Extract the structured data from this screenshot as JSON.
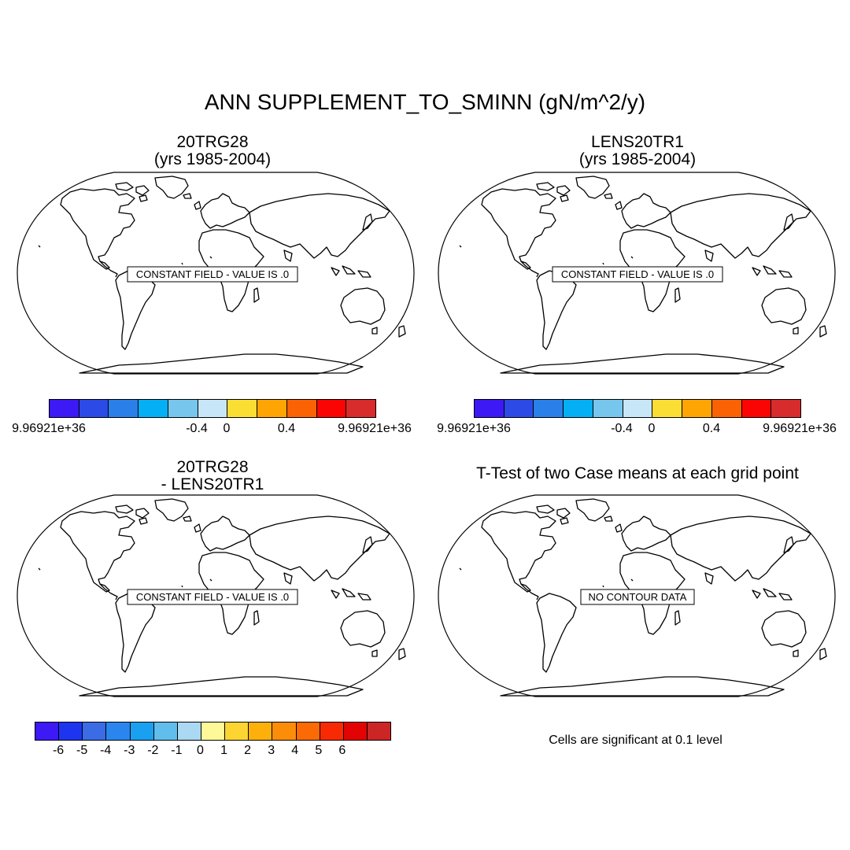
{
  "title": "ANN SUPPLEMENT_TO_SMINN (gN/m^2/y)",
  "panels": [
    {
      "id": "case1",
      "title_line1": "20TRG28",
      "title_line2": "(yrs 1985-2004)",
      "message": "CONSTANT FIELD - VALUE IS .0"
    },
    {
      "id": "case2",
      "title_line1": "LENS20TR1",
      "title_line2": "(yrs 1985-2004)",
      "message": "CONSTANT FIELD - VALUE IS .0"
    },
    {
      "id": "difference",
      "title_line1": "20TRG28",
      "title_line2": "- LENS20TR1",
      "message": "CONSTANT FIELD - VALUE IS .0"
    },
    {
      "id": "ttest",
      "title_line1": "T-Test of two Case means at each grid point",
      "title_line2": "",
      "message": "NO CONTOUR DATA"
    }
  ],
  "colorbar_case": {
    "colors": [
      "#3c19f5",
      "#2b4ae6",
      "#2a7fe8",
      "#04aff5",
      "#77c6ee",
      "#c7e6f8",
      "#fbde34",
      "#fea503",
      "#fb6204",
      "#fa0504",
      "#d82b2b"
    ],
    "labels": [
      "9.96921e+36",
      "-0.4",
      "0",
      "0.4",
      "9.96921e+36"
    ]
  },
  "colorbar_diff": {
    "colors": [
      "#3c19f5",
      "#1e35f0",
      "#3b6ce6",
      "#2a86ee",
      "#1aa0f0",
      "#60bdec",
      "#abd8f2",
      "#fff899",
      "#fdd532",
      "#fdb00a",
      "#fc8d09",
      "#fb6a04",
      "#f82a04",
      "#e30303",
      "#cc2525"
    ],
    "labels": [
      "-6",
      "-5",
      "-4",
      "-3",
      "-2",
      "-1",
      "0",
      "1",
      "2",
      "3",
      "4",
      "5",
      "6"
    ]
  },
  "significance_note": "Cells are significant at 0.1 level"
}
